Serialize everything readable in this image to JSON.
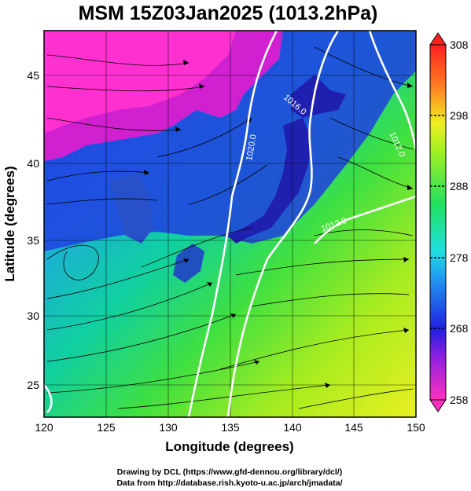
{
  "title": "MSM 15Z03Jan2025 (1013.2hPa)",
  "xlabel": "Longitude (degrees)",
  "ylabel": "Latitude  (degrees)",
  "x_ticks": [
    "120",
    "125",
    "130",
    "135",
    "140",
    "145",
    "150"
  ],
  "y_ticks": [
    "25",
    "30",
    "35",
    "40",
    "45"
  ],
  "colorbar": {
    "ticks": [
      "258",
      "268",
      "278",
      "288",
      "298",
      "308"
    ],
    "min": 258,
    "max": 308
  },
  "isobars": [
    {
      "label": "1020.0",
      "value": 1020.0
    },
    {
      "label": "1016.0",
      "value": 1016.0
    },
    {
      "label": "1012.0",
      "value": 1012.0
    }
  ],
  "credits": {
    "line1": "Drawing by DCL (https://www.gfd-dennou.org/library/dcl/)",
    "line2": "Data from http://database.rish.kyoto-u.ac.jp/arch/jmadata/"
  },
  "map": {
    "lon_range": [
      120,
      150
    ],
    "lat_range": [
      22.7,
      48
    ],
    "grid": true,
    "field": "temperature (K) with wind streamlines and pressure isobars"
  }
}
